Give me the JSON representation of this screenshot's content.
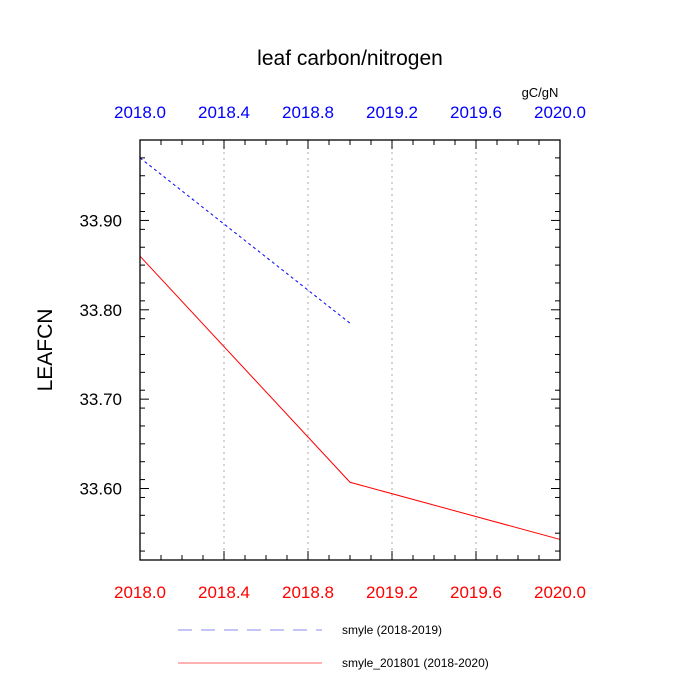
{
  "chart_data": {
    "type": "line",
    "title": "leaf carbon/nitrogen",
    "units": "gC/gN",
    "ylabel": "LEAFCN",
    "xlabel": "",
    "xlim": [
      2018.0,
      2020.0
    ],
    "ylim": [
      33.52,
      33.99
    ],
    "bottom_ticks": [
      "2018.0",
      "2018.4",
      "2018.8",
      "2019.2",
      "2019.6",
      "2020.0"
    ],
    "top_ticks": [
      "2018.0",
      "2018.4",
      "2018.8",
      "2019.2",
      "2019.6",
      "2020.0"
    ],
    "bottom_tick_values": [
      2018.0,
      2018.4,
      2018.8,
      2019.2,
      2019.6,
      2020.0
    ],
    "top_tick_values": [
      2018.0,
      2018.4,
      2018.8,
      2019.2,
      2019.6,
      2020.0
    ],
    "y_ticks": [
      "33.90",
      "33.80",
      "33.70",
      "33.60"
    ],
    "y_tick_values": [
      33.9,
      33.8,
      33.7,
      33.6
    ],
    "grid": "vertical dotted",
    "bottom_axis_color": "#ff0000",
    "top_axis_color": "#0000ff",
    "legend_placement": "bottom",
    "series": [
      {
        "name": "smyle (2018-2019)",
        "axis": "top",
        "color": "#0000ff",
        "style": "dashed",
        "x": [
          2018.0,
          2019.0
        ],
        "y": [
          33.97,
          33.785
        ]
      },
      {
        "name": "smyle_201801 (2018-2020)",
        "axis": "bottom",
        "color": "#ff0000",
        "style": "solid",
        "x": [
          2018.0,
          2019.0,
          2020.0
        ],
        "y": [
          33.86,
          33.607,
          33.543
        ]
      }
    ]
  }
}
